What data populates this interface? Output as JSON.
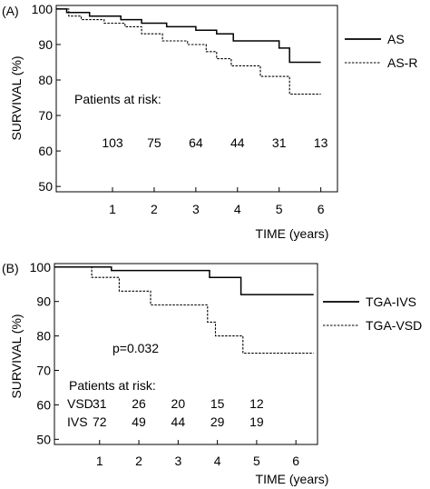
{
  "chart_data": [
    {
      "type": "line",
      "panel_label": "(A)",
      "xlabel": "TIME (years)",
      "ylabel": "SURVIVAL (%)",
      "xlim": [
        -0.35,
        6.4
      ],
      "ylim": [
        48.5,
        101
      ],
      "xticks": [
        1,
        2,
        3,
        4,
        5,
        6
      ],
      "yticks": [
        50,
        60,
        70,
        80,
        90,
        100
      ],
      "grid": false,
      "legend_position": "right",
      "series": [
        {
          "name": "AS",
          "style": "solid",
          "points": [
            [
              -0.35,
              100
            ],
            [
              -0.1,
              100
            ],
            [
              -0.1,
              99
            ],
            [
              0.45,
              99
            ],
            [
              0.45,
              98
            ],
            [
              1.2,
              98
            ],
            [
              1.2,
              97
            ],
            [
              1.7,
              97
            ],
            [
              1.7,
              96
            ],
            [
              2.3,
              96
            ],
            [
              2.3,
              95
            ],
            [
              3.0,
              95
            ],
            [
              3.0,
              94
            ],
            [
              3.5,
              94
            ],
            [
              3.5,
              93
            ],
            [
              3.9,
              93
            ],
            [
              3.9,
              91
            ],
            [
              5.0,
              91
            ],
            [
              5.0,
              89
            ],
            [
              5.25,
              89
            ],
            [
              5.25,
              85
            ],
            [
              6.0,
              85
            ]
          ]
        },
        {
          "name": "AS-R",
          "style": "dashed",
          "points": [
            [
              -0.35,
              100
            ],
            [
              -0.05,
              100
            ],
            [
              -0.05,
              98
            ],
            [
              0.25,
              98
            ],
            [
              0.25,
              97
            ],
            [
              0.8,
              97
            ],
            [
              0.8,
              96
            ],
            [
              1.3,
              96
            ],
            [
              1.3,
              95
            ],
            [
              1.7,
              95
            ],
            [
              1.7,
              93
            ],
            [
              2.2,
              93
            ],
            [
              2.2,
              91
            ],
            [
              2.8,
              91
            ],
            [
              2.8,
              90
            ],
            [
              3.25,
              90
            ],
            [
              3.25,
              88
            ],
            [
              3.5,
              88
            ],
            [
              3.5,
              86
            ],
            [
              3.85,
              86
            ],
            [
              3.85,
              84
            ],
            [
              4.55,
              84
            ],
            [
              4.55,
              81
            ],
            [
              5.25,
              81
            ],
            [
              5.25,
              76
            ],
            [
              6.0,
              76
            ]
          ]
        }
      ],
      "risk_table_title": "Patients at risk:",
      "risk_table": [
        {
          "label": "",
          "counts": [
            "103",
            "75",
            "64",
            "44",
            "31",
            "13"
          ]
        }
      ]
    },
    {
      "type": "line",
      "panel_label": "(B)",
      "xlabel": "TIME (years)",
      "ylabel": "SURVIVAL (%)",
      "xlim": [
        -0.15,
        6.55
      ],
      "ylim": [
        48.5,
        101
      ],
      "xticks": [
        1,
        2,
        3,
        4,
        5,
        6
      ],
      "yticks": [
        50,
        60,
        70,
        80,
        90,
        100
      ],
      "grid": false,
      "legend_position": "right",
      "annotation": "p=0.032",
      "series": [
        {
          "name": "TGA-IVS",
          "style": "solid",
          "points": [
            [
              -0.15,
              100
            ],
            [
              1.3,
              100
            ],
            [
              1.3,
              99
            ],
            [
              3.8,
              99
            ],
            [
              3.8,
              97
            ],
            [
              4.6,
              97
            ],
            [
              4.6,
              92
            ],
            [
              6.45,
              92
            ]
          ]
        },
        {
          "name": "TGA-VSD",
          "style": "dashed",
          "points": [
            [
              -0.15,
              100
            ],
            [
              0.8,
              100
            ],
            [
              0.8,
              97
            ],
            [
              1.5,
              97
            ],
            [
              1.5,
              93
            ],
            [
              2.3,
              93
            ],
            [
              2.3,
              89
            ],
            [
              3.75,
              89
            ],
            [
              3.75,
              84
            ],
            [
              3.95,
              84
            ],
            [
              3.95,
              80
            ],
            [
              4.65,
              80
            ],
            [
              4.65,
              75
            ],
            [
              6.45,
              75
            ]
          ]
        }
      ],
      "risk_table_title": "Patients at risk:",
      "risk_table": [
        {
          "label": "VSD",
          "counts": [
            "31",
            "26",
            "20",
            "15",
            "12"
          ]
        },
        {
          "label": "IVS",
          "counts": [
            "72",
            "49",
            "44",
            "29",
            "19"
          ]
        }
      ]
    }
  ]
}
